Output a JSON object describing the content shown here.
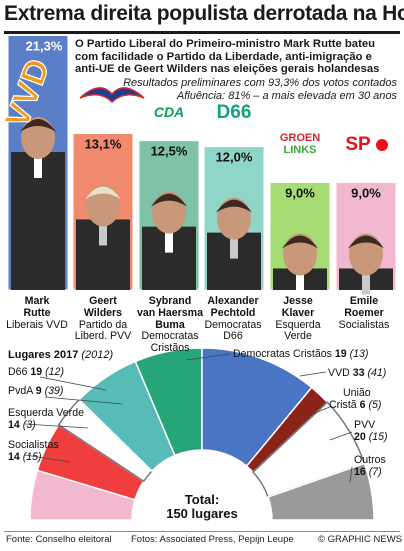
{
  "title": "Extrema direita populista derrotada na Holanda",
  "intro": "O Partido Liberal do Primeiro-ministro Mark Rutte bateu com facilidade o Partido da Liberdade, anti-imigração e anti-UE de Geert Wilders nas eleições gerais holandesas",
  "intro_note_1": "Resultados preliminares com 93,3% dos votos contados",
  "intro_note_2": "Afluência: 81% – a mais elevada em 30 anos",
  "chart_data": [
    {
      "type": "bar",
      "categories": [
        "Mark Rutte",
        "Geert Wilders",
        "Sybrand van Haersma Buma",
        "Alexander Pechtold",
        "Jesse Klaver",
        "Emile Roemer"
      ],
      "values": [
        21.3,
        13.1,
        12.5,
        12.0,
        9.0,
        9.0
      ],
      "value_labels": [
        "21,3%",
        "13,1%",
        "12,5%",
        "12,0%",
        "9,0%",
        "9,0%"
      ],
      "party_logos": [
        "VVD",
        "PVV",
        "CDA",
        "D66",
        "GROEN LINKS",
        "SP"
      ],
      "colors": [
        "#5b7fc7",
        "#f28a70",
        "#7ec2a8",
        "#8fd5c8",
        "#a7dc74",
        "#f2b8d0"
      ],
      "candidates": [
        {
          "first": "Mark",
          "last": "Rutte",
          "party": "Liberais VVD"
        },
        {
          "first": "Geert",
          "last": "Wilders",
          "party": "Partido da Liberd. PVV"
        },
        {
          "first": "Sybrand",
          "last": "van Haersma Buma",
          "party": "Democratas Cristãos"
        },
        {
          "first": "Alexander",
          "last": "Pechtold",
          "party": "Democratas D66"
        },
        {
          "first": "Jesse",
          "last": "Klaver",
          "party": "Esquerda Verde"
        },
        {
          "first": "Emile",
          "last": "Roemer",
          "party": "Socialistas"
        }
      ]
    },
    {
      "type": "pie",
      "title": "Lugares 2017",
      "title_note": "(2012)",
      "total_label": "Total:",
      "total_value": "150 lugares",
      "series": [
        {
          "name": "Socialistas",
          "value": 14,
          "prev": "(15)",
          "color": "#f2b8d0"
        },
        {
          "name": "Esquerda Verde",
          "value": 14,
          "prev": "(3)",
          "color": "#f03d3d"
        },
        {
          "name": "PvdA",
          "value": 9,
          "prev": "(39)",
          "color": "#ffffff"
        },
        {
          "name": "D66",
          "value": 19,
          "prev": "(12)",
          "color": "#57bcb5"
        },
        {
          "name": "Democratas Cristãos",
          "value": 19,
          "prev": "(13)",
          "color": "#26a579"
        },
        {
          "name": "VVD",
          "value": 33,
          "prev": "(41)",
          "color": "#4a74c4"
        },
        {
          "name": "União Cristã",
          "value": 6,
          "prev": "(5)",
          "color": "#8b2318"
        },
        {
          "name": "PVV",
          "value": 20,
          "prev": "(15)",
          "color": "#ffffff"
        },
        {
          "name": "Outros",
          "value": 16,
          "prev": "(7)",
          "color": "#9a9a9a"
        }
      ]
    }
  ],
  "footer": {
    "source": "Fonte: Conselho eleitoral",
    "photos": "Fotos: Associated Press, Pepijn Leupe",
    "credit": "© GRAPHIC NEWS"
  }
}
